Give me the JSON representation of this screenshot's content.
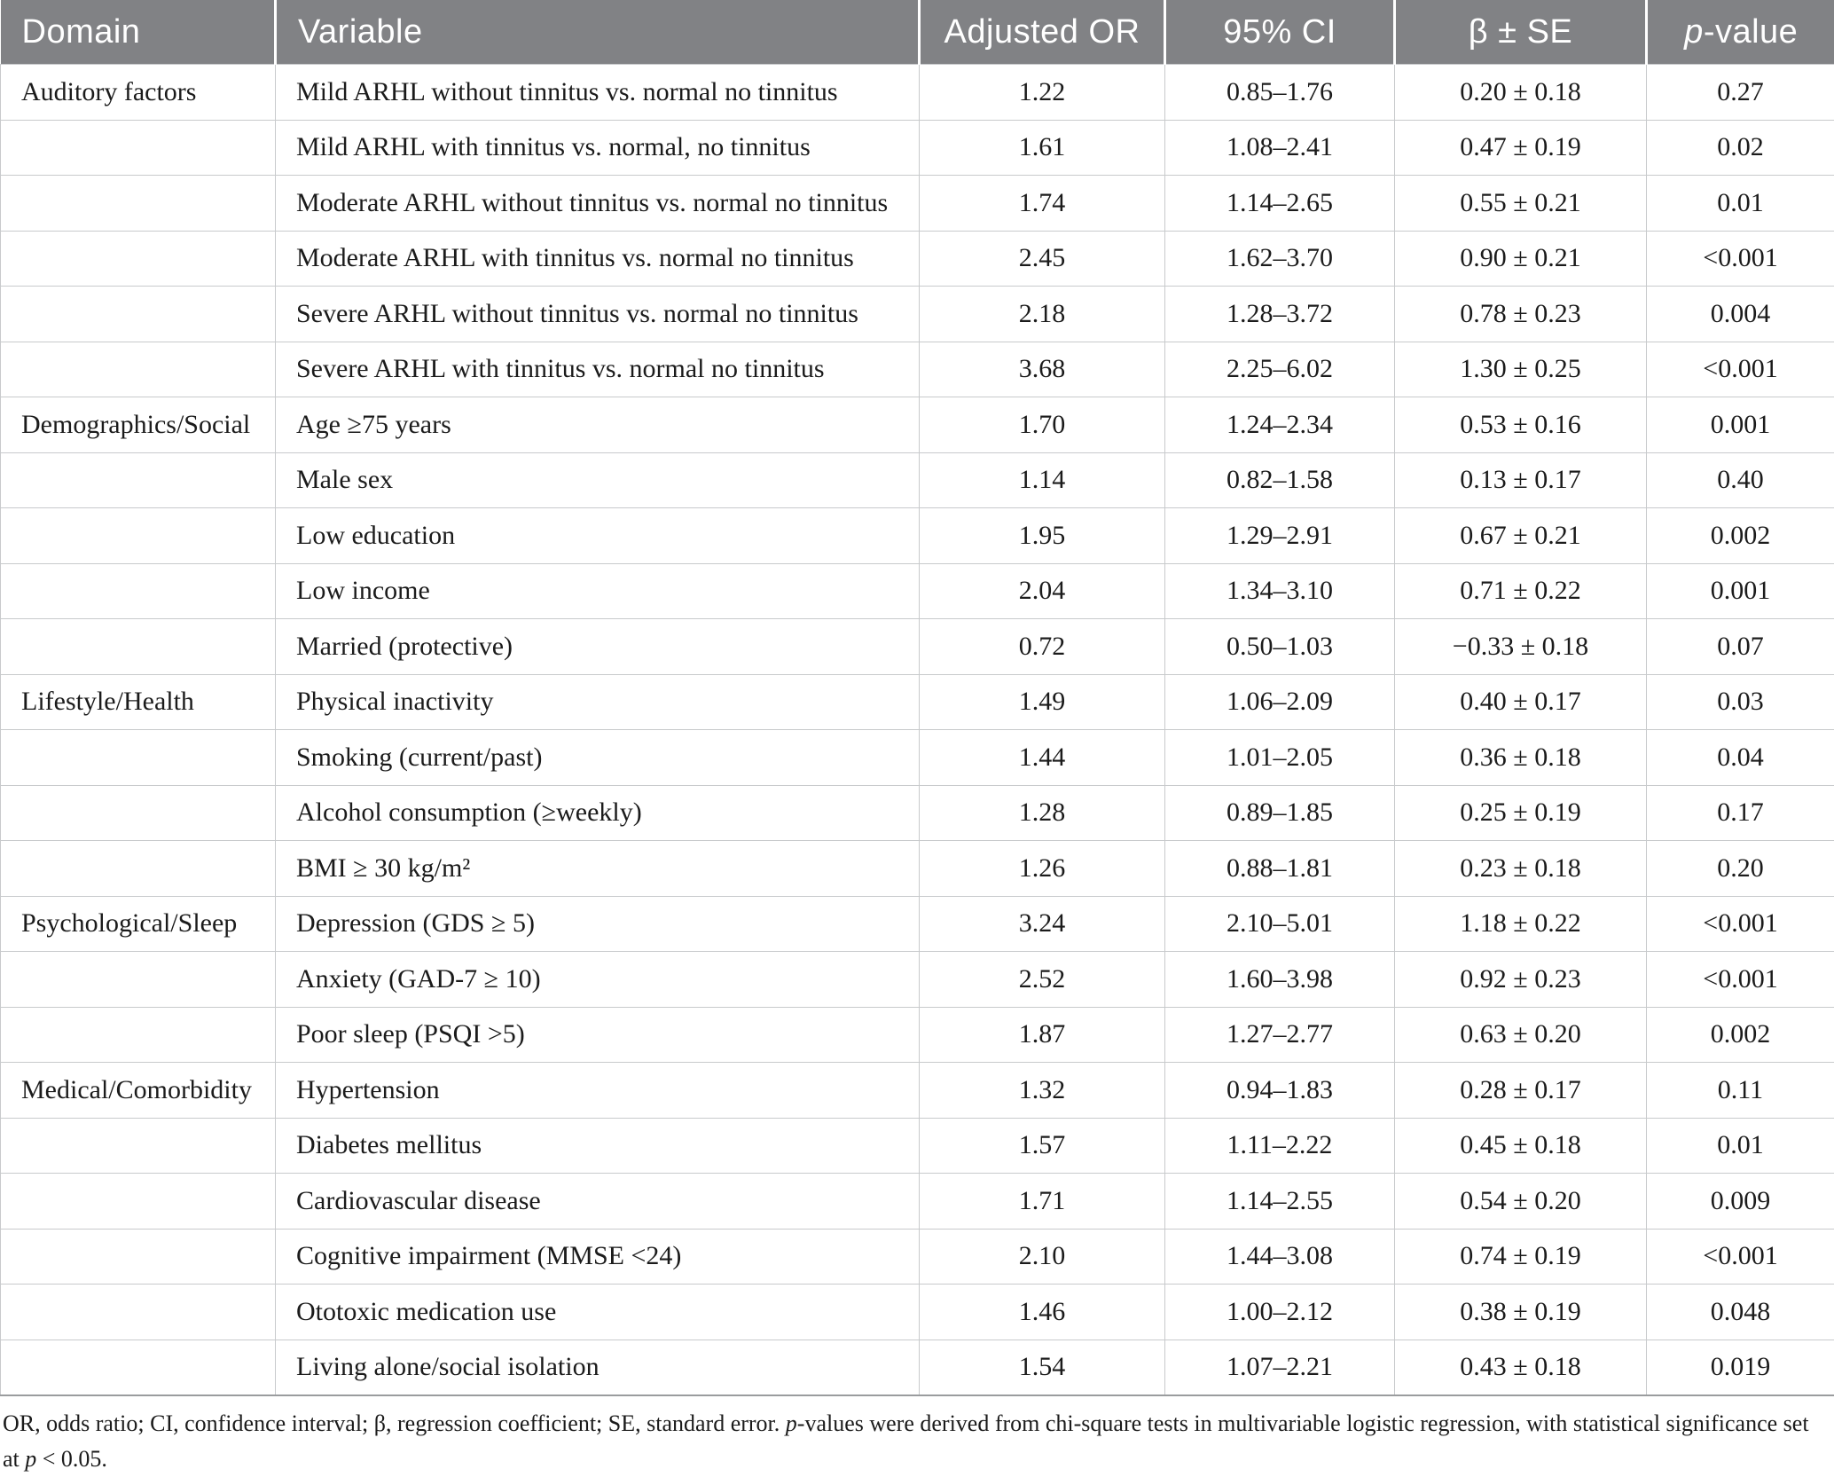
{
  "colors": {
    "header_bg": "#818285",
    "header_text": "#ffffff",
    "body_text": "#1b1b1b",
    "grid_line": "#c8cacc",
    "bottom_rule": "#9a9c9e"
  },
  "header": {
    "columns": [
      {
        "label": "Domain",
        "align": "left",
        "italic_first": false
      },
      {
        "label": "Variable",
        "align": "left",
        "italic_first": false
      },
      {
        "label": "Adjusted OR",
        "align": "center",
        "italic_first": false
      },
      {
        "label": "95% CI",
        "align": "center",
        "italic_first": false
      },
      {
        "label": "β ± SE",
        "align": "center",
        "italic_first": false
      },
      {
        "label": "p-value",
        "align": "center",
        "italic_first": true
      }
    ]
  },
  "rows": [
    {
      "domain": "Auditory factors",
      "variable": "Mild ARHL without tinnitus vs. normal no tinnitus",
      "adjusted_or": "1.22",
      "ci": "0.85–1.76",
      "beta_se": "0.20 ± 0.18",
      "p_value": "0.27"
    },
    {
      "domain": "",
      "variable": "Mild ARHL with tinnitus vs. normal, no tinnitus",
      "adjusted_or": "1.61",
      "ci": "1.08–2.41",
      "beta_se": "0.47 ± 0.19",
      "p_value": "0.02"
    },
    {
      "domain": "",
      "variable": "Moderate ARHL without tinnitus vs. normal no tinnitus",
      "adjusted_or": "1.74",
      "ci": "1.14–2.65",
      "beta_se": "0.55 ± 0.21",
      "p_value": "0.01"
    },
    {
      "domain": "",
      "variable": "Moderate ARHL with tinnitus vs. normal no tinnitus",
      "adjusted_or": "2.45",
      "ci": "1.62–3.70",
      "beta_se": "0.90 ± 0.21",
      "p_value": "<0.001"
    },
    {
      "domain": "",
      "variable": "Severe ARHL without tinnitus vs. normal no tinnitus",
      "adjusted_or": "2.18",
      "ci": "1.28–3.72",
      "beta_se": "0.78 ± 0.23",
      "p_value": "0.004"
    },
    {
      "domain": "",
      "variable": "Severe ARHL with tinnitus vs. normal no tinnitus",
      "adjusted_or": "3.68",
      "ci": "2.25–6.02",
      "beta_se": "1.30 ± 0.25",
      "p_value": "<0.001"
    },
    {
      "domain": "Demographics/Social",
      "variable": "Age ≥75 years",
      "adjusted_or": "1.70",
      "ci": "1.24–2.34",
      "beta_se": "0.53 ± 0.16",
      "p_value": "0.001"
    },
    {
      "domain": "",
      "variable": "Male sex",
      "adjusted_or": "1.14",
      "ci": "0.82–1.58",
      "beta_se": "0.13 ± 0.17",
      "p_value": "0.40"
    },
    {
      "domain": "",
      "variable": "Low education",
      "adjusted_or": "1.95",
      "ci": "1.29–2.91",
      "beta_se": "0.67 ± 0.21",
      "p_value": "0.002"
    },
    {
      "domain": "",
      "variable": "Low income",
      "adjusted_or": "2.04",
      "ci": "1.34–3.10",
      "beta_se": "0.71 ± 0.22",
      "p_value": "0.001"
    },
    {
      "domain": "",
      "variable": "Married (protective)",
      "adjusted_or": "0.72",
      "ci": "0.50–1.03",
      "beta_se": "−0.33 ± 0.18",
      "p_value": "0.07"
    },
    {
      "domain": "Lifestyle/Health",
      "variable": "Physical inactivity",
      "adjusted_or": "1.49",
      "ci": "1.06–2.09",
      "beta_se": "0.40 ± 0.17",
      "p_value": "0.03"
    },
    {
      "domain": "",
      "variable": "Smoking (current/past)",
      "adjusted_or": "1.44",
      "ci": "1.01–2.05",
      "beta_se": "0.36 ± 0.18",
      "p_value": "0.04"
    },
    {
      "domain": "",
      "variable": "Alcohol consumption (≥weekly)",
      "adjusted_or": "1.28",
      "ci": "0.89–1.85",
      "beta_se": "0.25 ± 0.19",
      "p_value": "0.17"
    },
    {
      "domain": "",
      "variable": "BMI ≥ 30 kg/m²",
      "adjusted_or": "1.26",
      "ci": "0.88–1.81",
      "beta_se": "0.23 ± 0.18",
      "p_value": "0.20"
    },
    {
      "domain": "Psychological/Sleep",
      "variable": "Depression (GDS ≥ 5)",
      "adjusted_or": "3.24",
      "ci": "2.10–5.01",
      "beta_se": "1.18 ± 0.22",
      "p_value": "<0.001"
    },
    {
      "domain": "",
      "variable": "Anxiety (GAD-7 ≥ 10)",
      "adjusted_or": "2.52",
      "ci": "1.60–3.98",
      "beta_se": "0.92 ± 0.23",
      "p_value": "<0.001"
    },
    {
      "domain": "",
      "variable": "Poor sleep (PSQI >5)",
      "adjusted_or": "1.87",
      "ci": "1.27–2.77",
      "beta_se": "0.63 ± 0.20",
      "p_value": "0.002"
    },
    {
      "domain": "Medical/Comorbidity",
      "variable": "Hypertension",
      "adjusted_or": "1.32",
      "ci": "0.94–1.83",
      "beta_se": "0.28 ± 0.17",
      "p_value": "0.11"
    },
    {
      "domain": "",
      "variable": "Diabetes mellitus",
      "adjusted_or": "1.57",
      "ci": "1.11–2.22",
      "beta_se": "0.45 ± 0.18",
      "p_value": "0.01"
    },
    {
      "domain": "",
      "variable": "Cardiovascular disease",
      "adjusted_or": "1.71",
      "ci": "1.14–2.55",
      "beta_se": "0.54 ± 0.20",
      "p_value": "0.009"
    },
    {
      "domain": "",
      "variable": "Cognitive impairment (MMSE <24)",
      "adjusted_or": "2.10",
      "ci": "1.44–3.08",
      "beta_se": "0.74 ± 0.19",
      "p_value": "<0.001"
    },
    {
      "domain": "",
      "variable": "Ototoxic medication use",
      "adjusted_or": "1.46",
      "ci": "1.00–2.12",
      "beta_se": "0.38 ± 0.19",
      "p_value": "0.048"
    },
    {
      "domain": "",
      "variable": "Living alone/social isolation",
      "adjusted_or": "1.54",
      "ci": "1.07–2.21",
      "beta_se": "0.43 ± 0.18",
      "p_value": "0.019"
    }
  ],
  "footnote": {
    "segments": [
      {
        "text": "OR, odds ratio; CI, confidence interval; β, regression coefficient; SE, standard error. ",
        "italic": false
      },
      {
        "text": "p",
        "italic": true
      },
      {
        "text": "-values were derived from chi-square tests in multivariable logistic regression, with statistical significance set at ",
        "italic": false
      },
      {
        "text": "p",
        "italic": true
      },
      {
        "text": " < 0.05.",
        "italic": false
      }
    ]
  }
}
